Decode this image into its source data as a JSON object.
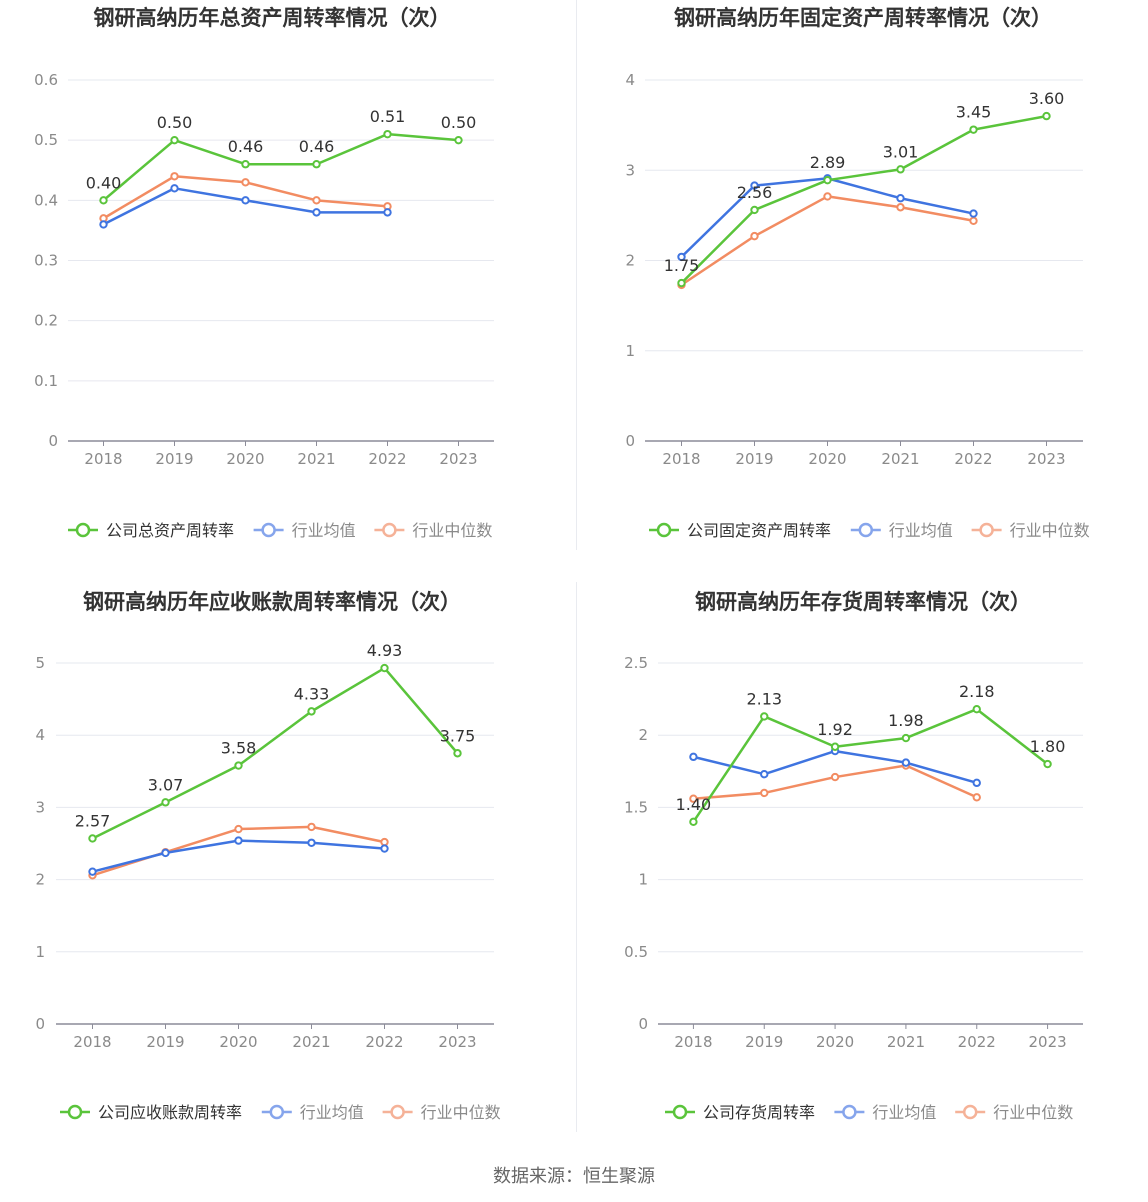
{
  "source_label": "数据来源：恒生聚源",
  "colors": {
    "company": "#5ac43b",
    "industry_avg": "#3f74e0",
    "industry_median": "#f28c62"
  },
  "legend_common": {
    "avg": "行业均值",
    "median": "行业中位数"
  },
  "chart_data": [
    {
      "type": "line",
      "title": "钢研高纳历年总资产周转率情况（次）",
      "categories": [
        "2018",
        "2019",
        "2020",
        "2021",
        "2022",
        "2023"
      ],
      "ylim": [
        0,
        0.6
      ],
      "yticks": [
        "0",
        "0.1",
        "0.2",
        "0.3",
        "0.4",
        "0.5",
        "0.6"
      ],
      "grid": true,
      "legend_position": "bottom",
      "series": [
        {
          "name": "公司总资产周转率",
          "key": "company",
          "values": [
            0.4,
            0.5,
            0.46,
            0.46,
            0.51,
            0.5
          ],
          "labels": [
            "0.40",
            "0.50",
            "0.46",
            "0.46",
            "0.51",
            "0.50"
          ]
        },
        {
          "name": "行业均值",
          "key": "industry_avg",
          "values": [
            0.36,
            0.42,
            0.4,
            0.38,
            0.38,
            null
          ]
        },
        {
          "name": "行业中位数",
          "key": "industry_median",
          "values": [
            0.37,
            0.44,
            0.43,
            0.4,
            0.39,
            null
          ]
        }
      ]
    },
    {
      "type": "line",
      "title": "钢研高纳历年固定资产周转率情况（次）",
      "categories": [
        "2018",
        "2019",
        "2020",
        "2021",
        "2022",
        "2023"
      ],
      "ylim": [
        0,
        4
      ],
      "yticks": [
        "0",
        "1",
        "2",
        "3",
        "4"
      ],
      "grid": true,
      "legend_position": "bottom",
      "series": [
        {
          "name": "公司固定资产周转率",
          "key": "company",
          "values": [
            1.75,
            2.56,
            2.89,
            3.01,
            3.45,
            3.6
          ],
          "labels": [
            "1.75",
            "2.56",
            "2.89",
            "3.01",
            "3.45",
            "3.60"
          ]
        },
        {
          "name": "行业均值",
          "key": "industry_avg",
          "values": [
            2.04,
            2.83,
            2.91,
            2.69,
            2.52,
            null
          ]
        },
        {
          "name": "行业中位数",
          "key": "industry_median",
          "values": [
            1.73,
            2.27,
            2.71,
            2.59,
            2.44,
            null
          ]
        }
      ]
    },
    {
      "type": "line",
      "title": "钢研高纳历年应收账款周转率情况（次）",
      "categories": [
        "2018",
        "2019",
        "2020",
        "2021",
        "2022",
        "2023"
      ],
      "ylim": [
        0,
        5
      ],
      "yticks": [
        "0",
        "1",
        "2",
        "3",
        "4",
        "5"
      ],
      "grid": true,
      "legend_position": "bottom",
      "series": [
        {
          "name": "公司应收账款周转率",
          "key": "company",
          "values": [
            2.57,
            3.07,
            3.58,
            4.33,
            4.93,
            3.75
          ],
          "labels": [
            "2.57",
            "3.07",
            "3.58",
            "4.33",
            "4.93",
            "3.75"
          ]
        },
        {
          "name": "行业均值",
          "key": "industry_avg",
          "values": [
            2.11,
            2.37,
            2.54,
            2.51,
            2.43,
            null
          ]
        },
        {
          "name": "行业中位数",
          "key": "industry_median",
          "values": [
            2.06,
            2.38,
            2.7,
            2.73,
            2.52,
            null
          ]
        }
      ]
    },
    {
      "type": "line",
      "title": "钢研高纳历年存货周转率情况（次）",
      "categories": [
        "2018",
        "2019",
        "2020",
        "2021",
        "2022",
        "2023"
      ],
      "ylim": [
        0,
        2.5
      ],
      "yticks": [
        "0",
        "0.5",
        "1",
        "1.5",
        "2",
        "2.5"
      ],
      "grid": true,
      "legend_position": "bottom",
      "series": [
        {
          "name": "公司存货周转率",
          "key": "company",
          "values": [
            1.4,
            2.13,
            1.92,
            1.98,
            2.18,
            1.8
          ],
          "labels": [
            "1.40",
            "2.13",
            "1.92",
            "1.98",
            "2.18",
            "1.80"
          ]
        },
        {
          "name": "行业均值",
          "key": "industry_avg",
          "values": [
            1.85,
            1.73,
            1.89,
            1.81,
            1.67,
            null
          ]
        },
        {
          "name": "行业中位数",
          "key": "industry_median",
          "values": [
            1.56,
            1.6,
            1.71,
            1.79,
            1.57,
            null
          ]
        }
      ]
    }
  ]
}
